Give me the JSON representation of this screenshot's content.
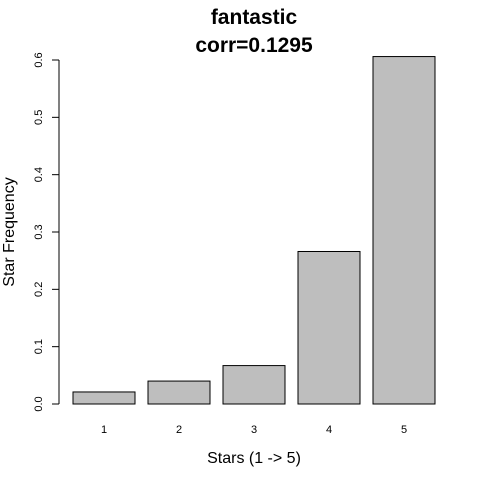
{
  "chart_data": {
    "type": "bar",
    "title": "fantastic",
    "subtitle": "corr=0.1295",
    "xlabel": "Stars (1 -> 5)",
    "ylabel": "Star Frequency",
    "categories": [
      "1",
      "2",
      "3",
      "4",
      "5"
    ],
    "values": [
      0.021,
      0.04,
      0.067,
      0.266,
      0.606
    ],
    "ylim": [
      0,
      0.6
    ],
    "yticks": [
      "0.0",
      "0.1",
      "0.2",
      "0.3",
      "0.4",
      "0.5",
      "0.6"
    ],
    "grid": false,
    "legend": "none",
    "bar_color": "#bebebe",
    "border_color": "#000000"
  }
}
